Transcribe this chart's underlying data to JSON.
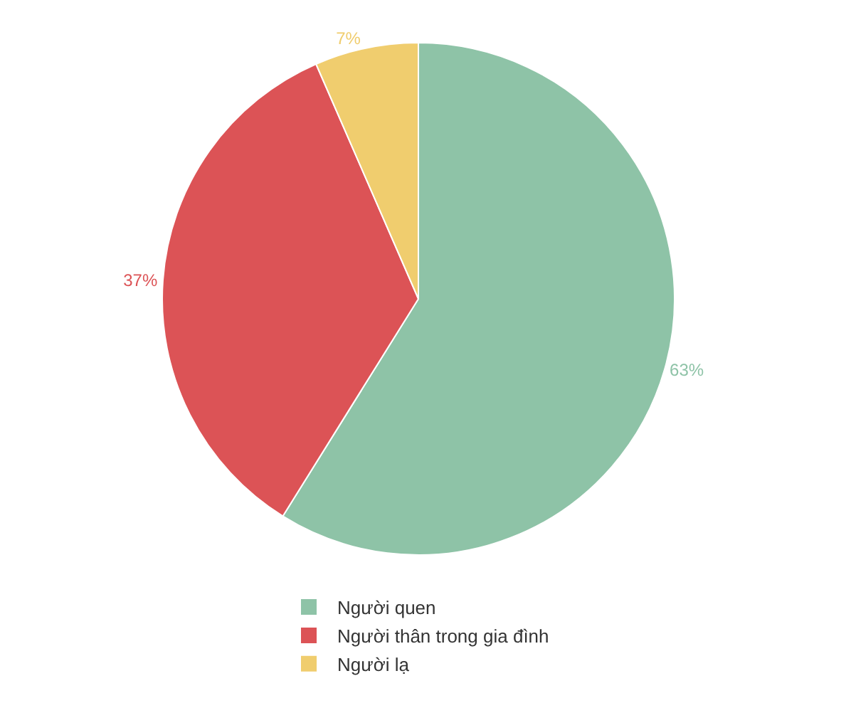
{
  "chart_data": {
    "type": "pie",
    "categories": [
      "Người quen",
      "Người thân trong gia đình",
      "Người lạ"
    ],
    "values": [
      63,
      37,
      7
    ],
    "colors": [
      "#8ec3a7",
      "#dc5356",
      "#f0cd6e"
    ],
    "value_labels": [
      "63%",
      "37%",
      "7%"
    ],
    "legend": "bottom"
  }
}
